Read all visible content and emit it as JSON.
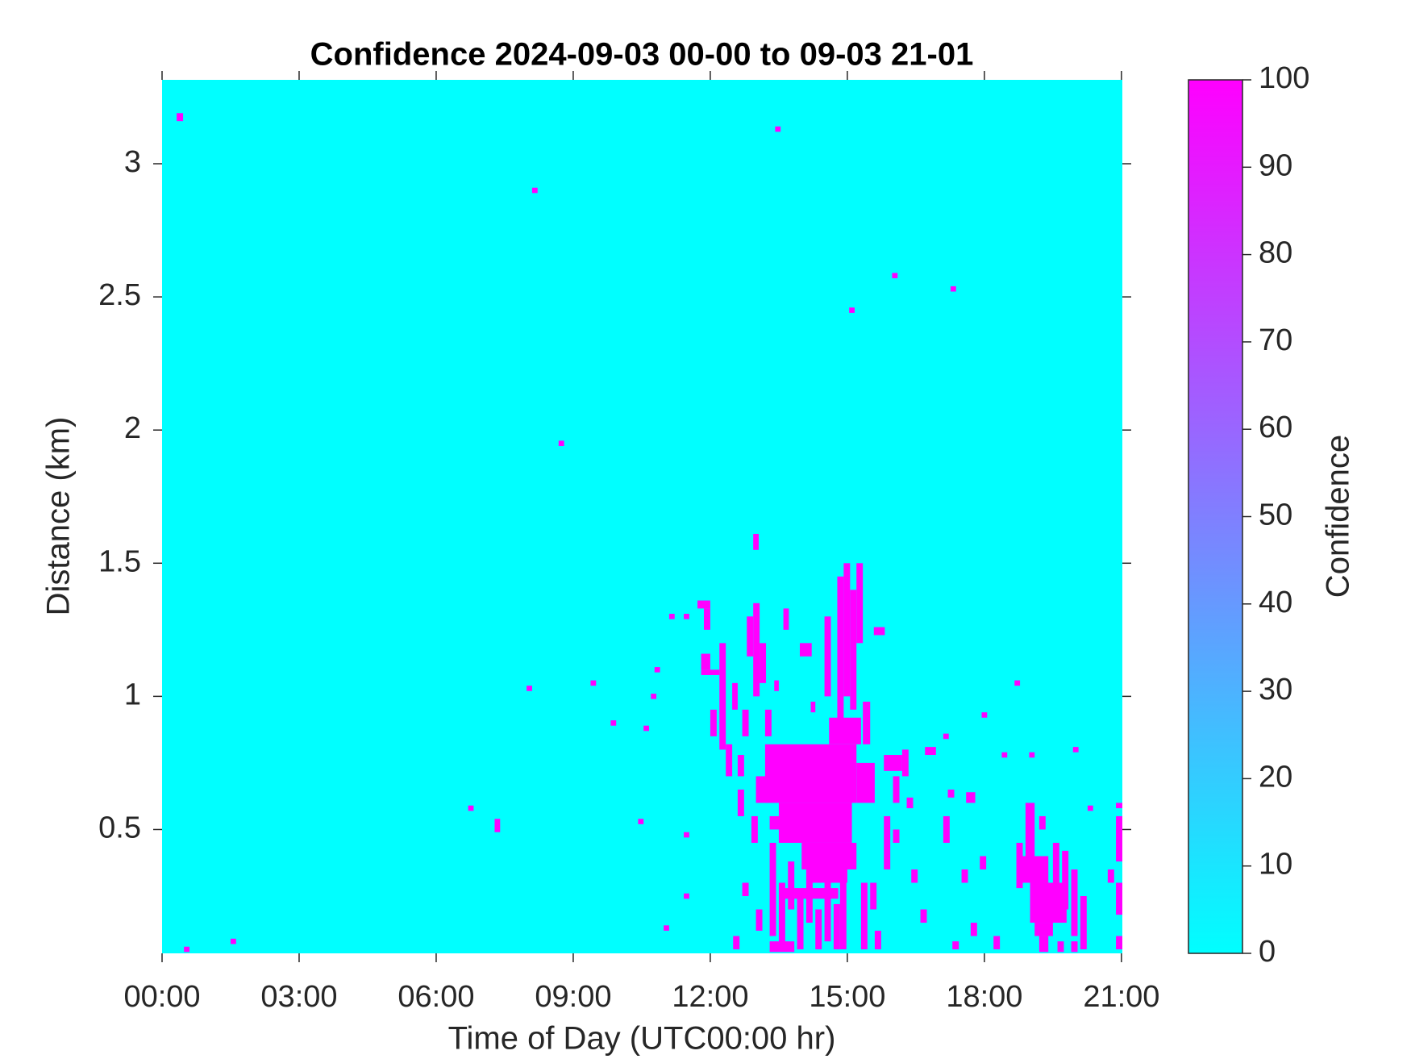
{
  "chart_data": {
    "type": "heatmap",
    "title": "Confidence 2024-09-03 00-00 to 09-03 21-01",
    "x_label": "Time of Day (UTC00:00 hr)",
    "y_label": "Distance (km)",
    "colorbar_label": "Confidence",
    "colormap": [
      "#00ffff",
      "#ff00ff"
    ],
    "clim": [
      0,
      100
    ],
    "cticks": [
      0,
      10,
      20,
      30,
      40,
      50,
      60,
      70,
      80,
      90,
      100
    ],
    "xlim": [
      0,
      21.02
    ],
    "xticks": [
      {
        "value": 0,
        "label": "00:00"
      },
      {
        "value": 3,
        "label": "03:00"
      },
      {
        "value": 6,
        "label": "06:00"
      },
      {
        "value": 9,
        "label": "09:00"
      },
      {
        "value": 12,
        "label": "12:00"
      },
      {
        "value": 15,
        "label": "15:00"
      },
      {
        "value": 18,
        "label": "18:00"
      },
      {
        "value": 21,
        "label": "21:00"
      }
    ],
    "ylim": [
      0.035,
      3.315
    ],
    "yticks": [
      0.5,
      1,
      1.5,
      2,
      2.5,
      3
    ],
    "fill_value": 0,
    "cells": [
      {
        "x": [
          0.32,
          0.46
        ],
        "y": [
          3.16,
          3.19
        ],
        "v": 100
      },
      {
        "x": [
          13.42,
          13.54
        ],
        "y": [
          3.12,
          3.14
        ],
        "v": 100
      },
      {
        "x": [
          8.1,
          8.22
        ],
        "y": [
          2.89,
          2.91
        ],
        "v": 100
      },
      {
        "x": [
          15.98,
          16.1
        ],
        "y": [
          2.57,
          2.59
        ],
        "v": 100
      },
      {
        "x": [
          17.26,
          17.38
        ],
        "y": [
          2.52,
          2.54
        ],
        "v": 100
      },
      {
        "x": [
          15.04,
          15.16
        ],
        "y": [
          2.44,
          2.46
        ],
        "v": 100
      },
      {
        "x": [
          8.68,
          8.8
        ],
        "y": [
          1.94,
          1.96
        ],
        "v": 100
      },
      {
        "x": [
          12.94,
          13.06
        ],
        "y": [
          1.55,
          1.61
        ],
        "v": 100
      },
      {
        "x": [
          7.98,
          8.1
        ],
        "y": [
          1.02,
          1.04
        ],
        "v": 100
      },
      {
        "x": [
          9.38,
          9.5
        ],
        "y": [
          1.04,
          1.06
        ],
        "v": 100
      },
      {
        "x": [
          9.82,
          9.94
        ],
        "y": [
          0.89,
          0.91
        ],
        "v": 100
      },
      {
        "x": [
          10.54,
          10.66
        ],
        "y": [
          0.87,
          0.89
        ],
        "v": 100
      },
      {
        "x": [
          10.7,
          10.82
        ],
        "y": [
          0.99,
          1.01
        ],
        "v": 100
      },
      {
        "x": [
          10.78,
          10.9
        ],
        "y": [
          1.09,
          1.11
        ],
        "v": 100
      },
      {
        "x": [
          6.7,
          6.82
        ],
        "y": [
          0.57,
          0.59
        ],
        "v": 100
      },
      {
        "x": [
          7.28,
          7.4
        ],
        "y": [
          0.49,
          0.54
        ],
        "v": 100
      },
      {
        "x": [
          10.42,
          10.54
        ],
        "y": [
          0.52,
          0.54
        ],
        "v": 100
      },
      {
        "x": [
          0.48,
          0.6
        ],
        "y": [
          0.04,
          0.06
        ],
        "v": 100
      },
      {
        "x": [
          1.5,
          1.62
        ],
        "y": [
          0.07,
          0.09
        ],
        "v": 100
      },
      {
        "x": [
          18.66,
          18.78
        ],
        "y": [
          1.04,
          1.06
        ],
        "v": 100
      },
      {
        "x": [
          19.94,
          20.06
        ],
        "y": [
          0.79,
          0.81
        ],
        "v": 100
      },
      {
        "x": [
          20.26,
          20.38
        ],
        "y": [
          0.57,
          0.59
        ],
        "v": 100
      },
      {
        "x": [
          17.94,
          18.06
        ],
        "y": [
          0.92,
          0.94
        ],
        "v": 100
      },
      {
        "x": [
          18.98,
          19.1
        ],
        "y": [
          0.77,
          0.79
        ],
        "v": 100
      },
      {
        "x": [
          18.38,
          18.5
        ],
        "y": [
          0.77,
          0.79
        ],
        "v": 100
      },
      {
        "x": [
          11.42,
          11.54
        ],
        "y": [
          0.47,
          0.49
        ],
        "v": 100
      },
      {
        "x": [
          11.42,
          11.54
        ],
        "y": [
          0.24,
          0.26
        ],
        "v": 100
      },
      {
        "x": [
          10.98,
          11.1
        ],
        "y": [
          0.12,
          0.14
        ],
        "v": 100
      },
      {
        "x": [
          11.1,
          11.22
        ],
        "y": [
          1.29,
          1.31
        ],
        "v": 100
      },
      {
        "x": [
          11.42,
          11.54
        ],
        "y": [
          1.29,
          1.31
        ],
        "v": 100
      },
      {
        "x": [
          15.58,
          15.82
        ],
        "y": [
          1.23,
          1.26
        ],
        "v": 100
      },
      {
        "x": [
          17.1,
          17.22
        ],
        "y": [
          0.84,
          0.86
        ],
        "v": 100
      },
      {
        "x": [
          16.7,
          16.94
        ],
        "y": [
          0.78,
          0.81
        ],
        "v": 100
      },
      {
        "x": [
          11.72,
          12.0
        ],
        "y": [
          1.33,
          1.36
        ],
        "v": 100
      },
      {
        "x": [
          11.86,
          12.0
        ],
        "y": [
          1.25,
          1.33
        ],
        "v": 100
      },
      {
        "x": [
          11.8,
          12.0
        ],
        "y": [
          1.1,
          1.16
        ],
        "v": 100
      },
      {
        "x": [
          11.8,
          12.2
        ],
        "y": [
          1.08,
          1.1
        ],
        "v": 100
      },
      {
        "x": [
          12.2,
          12.34
        ],
        "y": [
          0.8,
          1.2
        ],
        "v": 100
      },
      {
        "x": [
          12.0,
          12.14
        ],
        "y": [
          0.85,
          0.95
        ],
        "v": 100
      },
      {
        "x": [
          12.34,
          12.48
        ],
        "y": [
          0.7,
          0.82
        ],
        "v": 100
      },
      {
        "x": [
          12.48,
          12.6
        ],
        "y": [
          0.95,
          1.05
        ],
        "v": 100
      },
      {
        "x": [
          12.7,
          12.84
        ],
        "y": [
          0.85,
          0.95
        ],
        "v": 100
      },
      {
        "x": [
          12.8,
          12.94
        ],
        "y": [
          1.15,
          1.3
        ],
        "v": 100
      },
      {
        "x": [
          12.94,
          13.08
        ],
        "y": [
          1.0,
          1.35
        ],
        "v": 100
      },
      {
        "x": [
          13.08,
          13.22
        ],
        "y": [
          1.05,
          1.2
        ],
        "v": 100
      },
      {
        "x": [
          13.2,
          13.34
        ],
        "y": [
          0.85,
          0.95
        ],
        "v": 100
      },
      {
        "x": [
          12.6,
          12.74
        ],
        "y": [
          0.7,
          0.78
        ],
        "v": 100
      },
      {
        "x": [
          13.6,
          13.72
        ],
        "y": [
          1.25,
          1.33
        ],
        "v": 100
      },
      {
        "x": [
          13.4,
          13.5
        ],
        "y": [
          1.02,
          1.06
        ],
        "v": 100
      },
      {
        "x": [
          13.96,
          14.22
        ],
        "y": [
          1.15,
          1.2
        ],
        "v": 100
      },
      {
        "x": [
          14.5,
          14.64
        ],
        "y": [
          1.0,
          1.3
        ],
        "v": 100
      },
      {
        "x": [
          14.78,
          14.92
        ],
        "y": [
          0.9,
          1.45
        ],
        "v": 100
      },
      {
        "x": [
          14.92,
          15.06
        ],
        "y": [
          1.0,
          1.5
        ],
        "v": 100
      },
      {
        "x": [
          15.06,
          15.2
        ],
        "y": [
          0.95,
          1.4
        ],
        "v": 100
      },
      {
        "x": [
          15.2,
          15.34
        ],
        "y": [
          1.2,
          1.5
        ],
        "v": 100
      },
      {
        "x": [
          15.34,
          15.5
        ],
        "y": [
          0.82,
          0.98
        ],
        "v": 100
      },
      {
        "x": [
          14.2,
          14.3
        ],
        "y": [
          0.94,
          0.98
        ],
        "v": 100
      },
      {
        "x": [
          13.2,
          15.2
        ],
        "y": [
          0.6,
          0.82
        ],
        "v": 100
      },
      {
        "x": [
          13.5,
          15.1
        ],
        "y": [
          0.45,
          0.6
        ],
        "v": 100
      },
      {
        "x": [
          13.3,
          14.0
        ],
        "y": [
          0.5,
          0.55
        ],
        "v": 100
      },
      {
        "x": [
          13.0,
          13.3
        ],
        "y": [
          0.6,
          0.7
        ],
        "v": 100
      },
      {
        "x": [
          14.0,
          15.2
        ],
        "y": [
          0.35,
          0.45
        ],
        "v": 100
      },
      {
        "x": [
          14.2,
          15.0
        ],
        "y": [
          0.3,
          0.35
        ],
        "v": 100
      },
      {
        "x": [
          14.6,
          15.3
        ],
        "y": [
          0.82,
          0.92
        ],
        "v": 100
      },
      {
        "x": [
          15.2,
          15.6
        ],
        "y": [
          0.6,
          0.75
        ],
        "v": 100
      },
      {
        "x": [
          12.6,
          12.74
        ],
        "y": [
          0.55,
          0.65
        ],
        "v": 100
      },
      {
        "x": [
          12.9,
          13.04
        ],
        "y": [
          0.45,
          0.55
        ],
        "v": 100
      },
      {
        "x": [
          13.3,
          13.44
        ],
        "y": [
          0.1,
          0.45
        ],
        "v": 100
      },
      {
        "x": [
          13.5,
          13.64
        ],
        "y": [
          0.05,
          0.3
        ],
        "v": 100
      },
      {
        "x": [
          13.7,
          13.84
        ],
        "y": [
          0.2,
          0.38
        ],
        "v": 100
      },
      {
        "x": [
          13.9,
          14.04
        ],
        "y": [
          0.05,
          0.25
        ],
        "v": 100
      },
      {
        "x": [
          14.1,
          14.24
        ],
        "y": [
          0.15,
          0.35
        ],
        "v": 100
      },
      {
        "x": [
          14.3,
          14.44
        ],
        "y": [
          0.05,
          0.2
        ],
        "v": 100
      },
      {
        "x": [
          14.5,
          14.64
        ],
        "y": [
          0.08,
          0.3
        ],
        "v": 100
      },
      {
        "x": [
          14.7,
          14.84
        ],
        "y": [
          0.05,
          0.22
        ],
        "v": 100
      },
      {
        "x": [
          14.84,
          14.98
        ],
        "y": [
          0.05,
          0.35
        ],
        "v": 100
      },
      {
        "x": [
          13.6,
          14.8
        ],
        "y": [
          0.24,
          0.28
        ],
        "v": 100
      },
      {
        "x": [
          13.0,
          13.14
        ],
        "y": [
          0.12,
          0.2
        ],
        "v": 100
      },
      {
        "x": [
          12.5,
          12.64
        ],
        "y": [
          0.05,
          0.1
        ],
        "v": 100
      },
      {
        "x": [
          12.7,
          12.84
        ],
        "y": [
          0.25,
          0.3
        ],
        "v": 100
      },
      {
        "x": [
          15.3,
          15.44
        ],
        "y": [
          0.05,
          0.3
        ],
        "v": 100
      },
      {
        "x": [
          15.5,
          15.64
        ],
        "y": [
          0.2,
          0.3
        ],
        "v": 100
      },
      {
        "x": [
          15.6,
          15.74
        ],
        "y": [
          0.05,
          0.12
        ],
        "v": 100
      },
      {
        "x": [
          13.3,
          13.84
        ],
        "y": [
          0.04,
          0.08
        ],
        "v": 100
      },
      {
        "x": [
          15.8,
          15.94
        ],
        "y": [
          0.35,
          0.55
        ],
        "v": 100
      },
      {
        "x": [
          16.0,
          16.14
        ],
        "y": [
          0.45,
          0.5
        ],
        "v": 100
      },
      {
        "x": [
          15.8,
          16.2
        ],
        "y": [
          0.72,
          0.78
        ],
        "v": 100
      },
      {
        "x": [
          16.0,
          16.14
        ],
        "y": [
          0.6,
          0.7
        ],
        "v": 100
      },
      {
        "x": [
          16.2,
          16.34
        ],
        "y": [
          0.7,
          0.8
        ],
        "v": 100
      },
      {
        "x": [
          16.4,
          16.54
        ],
        "y": [
          0.3,
          0.35
        ],
        "v": 100
      },
      {
        "x": [
          16.6,
          16.74
        ],
        "y": [
          0.15,
          0.2
        ],
        "v": 100
      },
      {
        "x": [
          16.3,
          16.44
        ],
        "y": [
          0.58,
          0.62
        ],
        "v": 100
      },
      {
        "x": [
          17.1,
          17.24
        ],
        "y": [
          0.45,
          0.55
        ],
        "v": 100
      },
      {
        "x": [
          17.2,
          17.34
        ],
        "y": [
          0.62,
          0.65
        ],
        "v": 100
      },
      {
        "x": [
          17.5,
          17.64
        ],
        "y": [
          0.3,
          0.35
        ],
        "v": 100
      },
      {
        "x": [
          17.6,
          17.8
        ],
        "y": [
          0.6,
          0.64
        ],
        "v": 100
      },
      {
        "x": [
          17.7,
          17.84
        ],
        "y": [
          0.1,
          0.15
        ],
        "v": 100
      },
      {
        "x": [
          17.9,
          18.04
        ],
        "y": [
          0.35,
          0.4
        ],
        "v": 100
      },
      {
        "x": [
          17.3,
          17.44
        ],
        "y": [
          0.05,
          0.08
        ],
        "v": 100
      },
      {
        "x": [
          18.2,
          18.34
        ],
        "y": [
          0.05,
          0.1
        ],
        "v": 100
      },
      {
        "x": [
          18.7,
          18.84
        ],
        "y": [
          0.28,
          0.45
        ],
        "v": 100
      },
      {
        "x": [
          18.9,
          19.1
        ],
        "y": [
          0.4,
          0.6
        ],
        "v": 100
      },
      {
        "x": [
          18.8,
          19.4
        ],
        "y": [
          0.3,
          0.4
        ],
        "v": 100
      },
      {
        "x": [
          19.0,
          19.8
        ],
        "y": [
          0.15,
          0.3
        ],
        "v": 100
      },
      {
        "x": [
          19.1,
          19.5
        ],
        "y": [
          0.1,
          0.15
        ],
        "v": 100
      },
      {
        "x": [
          19.2,
          19.4
        ],
        "y": [
          0.04,
          0.1
        ],
        "v": 100
      },
      {
        "x": [
          19.5,
          19.64
        ],
        "y": [
          0.3,
          0.45
        ],
        "v": 100
      },
      {
        "x": [
          19.7,
          19.84
        ],
        "y": [
          0.2,
          0.42
        ],
        "v": 100
      },
      {
        "x": [
          19.9,
          20.04
        ],
        "y": [
          0.1,
          0.35
        ],
        "v": 100
      },
      {
        "x": [
          20.1,
          20.24
        ],
        "y": [
          0.05,
          0.25
        ],
        "v": 100
      },
      {
        "x": [
          19.2,
          19.34
        ],
        "y": [
          0.5,
          0.55
        ],
        "v": 100
      },
      {
        "x": [
          19.6,
          19.74
        ],
        "y": [
          0.04,
          0.08
        ],
        "v": 100
      },
      {
        "x": [
          19.9,
          20.04
        ],
        "y": [
          0.04,
          0.08
        ],
        "v": 100
      },
      {
        "x": [
          20.88,
          21.02
        ],
        "y": [
          0.05,
          0.1
        ],
        "v": 100
      },
      {
        "x": [
          20.88,
          21.02
        ],
        "y": [
          0.18,
          0.3
        ],
        "v": 100
      },
      {
        "x": [
          20.88,
          21.02
        ],
        "y": [
          0.38,
          0.55
        ],
        "v": 100
      },
      {
        "x": [
          20.88,
          21.02
        ],
        "y": [
          0.58,
          0.6
        ],
        "v": 100
      },
      {
        "x": [
          20.7,
          20.84
        ],
        "y": [
          0.3,
          0.35
        ],
        "v": 100
      }
    ]
  }
}
